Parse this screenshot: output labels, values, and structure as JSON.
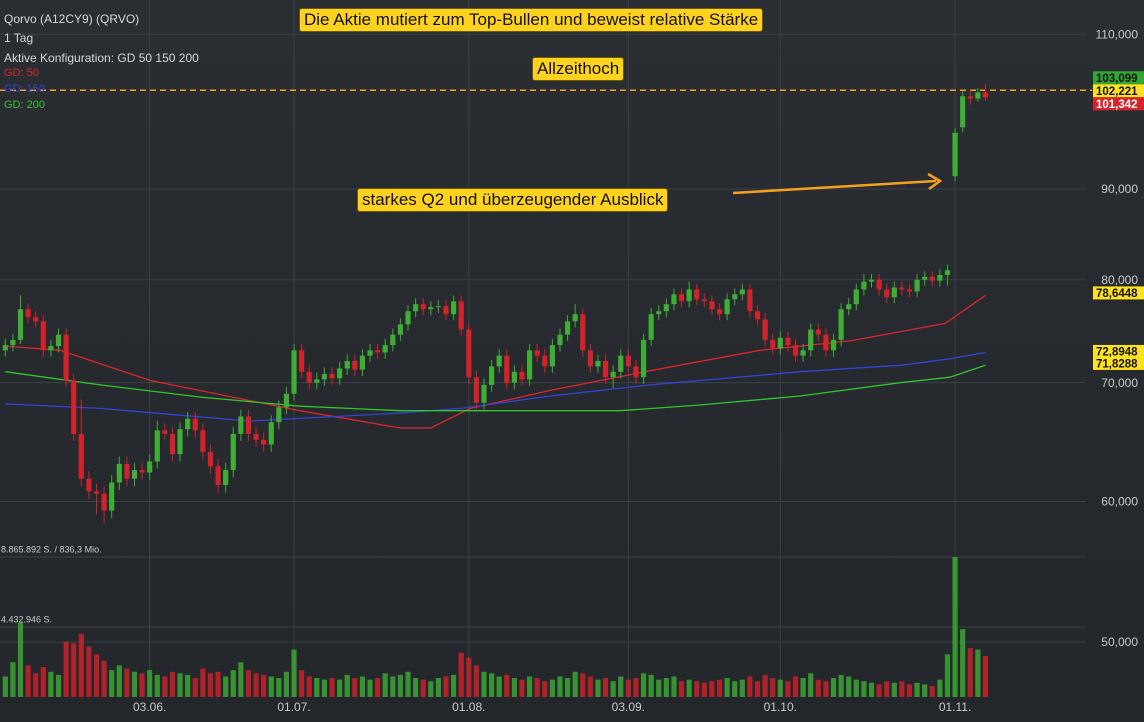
{
  "legend": {
    "title": "Qorvo (A12CY9) (QRVO)",
    "interval": "1 Tag",
    "config": "Aktive Konfiguration: GD 50 150 200"
  },
  "annotations": [
    {
      "text": "Die Aktie mutiert zum Top-Bullen und beweist relative Stärke"
    },
    {
      "text": "Allzeithoch"
    },
    {
      "text": "starkes Q2 und überzeugender Ausblick"
    }
  ],
  "chart_data": {
    "type": "candlestick",
    "log_scale": true,
    "grid": true,
    "xlim": [
      -0.7,
      142.1
    ],
    "xticks": [
      {
        "value": 19,
        "label": "03.06."
      },
      {
        "value": 38,
        "label": "01.07."
      },
      {
        "value": 61,
        "label": "01.08."
      },
      {
        "value": 82,
        "label": "03.09."
      },
      {
        "value": 102,
        "label": "01.10."
      },
      {
        "value": 125,
        "label": "01.11."
      }
    ],
    "ylim": [
      46.5,
      115
    ],
    "yticks": [
      {
        "value": 110,
        "label": "110,000"
      },
      {
        "value": 90,
        "label": "90,000"
      },
      {
        "value": 80,
        "label": "80,000"
      },
      {
        "value": 70,
        "label": "70,000"
      },
      {
        "value": 60,
        "label": "60,000"
      },
      {
        "value": 50,
        "label": "50,000"
      }
    ],
    "up_color": "#3fae35",
    "down_color": "#d2222a",
    "open": [
      73.0,
      73.5,
      74.0,
      77.0,
      76.2,
      75.8,
      73.0,
      73.4,
      74.5,
      70.2,
      65.5,
      61.8,
      60.8,
      60.6,
      59.3,
      61.5,
      63.0,
      61.8,
      62.5,
      62.3,
      63.2,
      65.8,
      65.5,
      63.8,
      65.9,
      66.8,
      65.8,
      64.0,
      62.8,
      61.3,
      62.5,
      65.5,
      67.0,
      65.5,
      65.0,
      64.6,
      66.5,
      67.8,
      69.0,
      73.0,
      71.0,
      70.0,
      70.3,
      70.8,
      70.4,
      71.3,
      72.0,
      71.2,
      72.5,
      73.0,
      72.8,
      73.5,
      74.5,
      75.5,
      76.8,
      77.5,
      77.0,
      77.2,
      77.3,
      76.5,
      77.8,
      75.0,
      70.5,
      68.2,
      69.8,
      71.5,
      72.5,
      70.0,
      71.0,
      70.3,
      73.0,
      72.5,
      71.5,
      73.5,
      74.5,
      75.8,
      76.5,
      73.0,
      71.5,
      72.0,
      70.5,
      71.0,
      72.5,
      71.5,
      70.5,
      74.0,
      76.5,
      76.8,
      77.5,
      78.5,
      77.8,
      79.0,
      78.0,
      77.8,
      77.0,
      76.5,
      78.0,
      78.5,
      79.0,
      76.8,
      76.0,
      74.0,
      73.2,
      74.2,
      73.5,
      72.5,
      73.0,
      75.0,
      74.5,
      73.0,
      74.0,
      77.0,
      77.5,
      79.0,
      79.8,
      80.0,
      79.0,
      78.2,
      79.2,
      79.0,
      78.8,
      80.0,
      80.3,
      79.9,
      80.5,
      91.5,
      97.5,
      101.5,
      101.2,
      102.0
    ],
    "high": [
      74.1,
      74.6,
      78.4,
      77.6,
      76.8,
      76.4,
      74.0,
      75.1,
      75.1,
      70.8,
      68.5,
      62.4,
      61.4,
      61.2,
      62.1,
      63.6,
      63.6,
      63.1,
      63.1,
      63.8,
      66.6,
      66.4,
      66.1,
      66.5,
      67.4,
      67.4,
      66.4,
      64.6,
      63.4,
      63.1,
      66.1,
      67.6,
      67.6,
      66.1,
      65.6,
      67.1,
      68.4,
      69.6,
      73.6,
      73.6,
      71.6,
      70.9,
      71.4,
      71.4,
      71.9,
      72.6,
      72.6,
      73.1,
      73.6,
      73.6,
      74.1,
      75.1,
      76.1,
      77.4,
      78.1,
      78.1,
      77.8,
      77.9,
      77.9,
      78.4,
      78.4,
      75.6,
      71.1,
      70.4,
      72.1,
      73.1,
      73.1,
      71.6,
      71.6,
      73.6,
      73.6,
      73.1,
      74.1,
      75.1,
      76.4,
      77.5,
      77.1,
      73.6,
      72.6,
      72.6,
      71.6,
      73.1,
      73.1,
      72.1,
      74.6,
      77.1,
      77.4,
      78.1,
      79.1,
      79.1,
      79.8,
      79.6,
      78.6,
      78.4,
      77.6,
      78.6,
      79.1,
      79.6,
      79.6,
      77.4,
      76.6,
      74.6,
      74.8,
      74.8,
      74.1,
      73.6,
      75.6,
      75.6,
      75.1,
      74.6,
      77.6,
      78.1,
      79.6,
      80.6,
      80.6,
      80.6,
      79.6,
      79.8,
      79.8,
      79.6,
      80.6,
      80.9,
      80.9,
      81.1,
      81.6,
      97.4,
      102.2,
      102.3,
      102.6,
      103.099
    ],
    "low": [
      72.4,
      72.9,
      73.6,
      75.6,
      75.2,
      72.4,
      72.4,
      72.8,
      69.6,
      64.9,
      61.2,
      60.2,
      59.0,
      58.3,
      58.7,
      60.9,
      61.2,
      61.2,
      61.7,
      61.7,
      62.6,
      64.9,
      63.2,
      63.2,
      65.3,
      65.2,
      63.4,
      62.2,
      60.7,
      60.7,
      61.9,
      64.9,
      64.9,
      64.4,
      64.0,
      64.0,
      65.9,
      67.2,
      68.4,
      70.4,
      69.4,
      69.4,
      69.7,
      69.8,
      69.8,
      70.7,
      70.6,
      70.6,
      71.9,
      72.2,
      72.2,
      72.9,
      73.9,
      74.9,
      76.2,
      76.4,
      76.4,
      76.6,
      75.9,
      75.9,
      74.4,
      69.9,
      67.6,
      67.6,
      69.2,
      70.9,
      69.4,
      69.4,
      69.7,
      69.7,
      71.9,
      70.9,
      70.9,
      72.9,
      73.9,
      75.2,
      72.4,
      70.9,
      70.9,
      69.9,
      69.5,
      70.4,
      70.9,
      69.9,
      69.9,
      73.4,
      75.9,
      76.2,
      76.9,
      77.2,
      77.2,
      77.4,
      77.2,
      76.4,
      75.9,
      75.9,
      77.4,
      77.9,
      76.2,
      75.4,
      73.4,
      72.6,
      72.6,
      72.9,
      71.9,
      71.9,
      72.4,
      73.9,
      72.4,
      72.4,
      73.4,
      76.4,
      76.9,
      78.4,
      79.2,
      78.4,
      77.6,
      77.6,
      78.4,
      78.2,
      78.2,
      79.4,
      79.3,
      79.3,
      79.4,
      90.9,
      96.9,
      100.4,
      100.8,
      100.9
    ],
    "close": [
      73.5,
      74.0,
      77.0,
      76.2,
      75.8,
      73.0,
      73.4,
      74.5,
      70.2,
      65.5,
      61.8,
      60.8,
      60.6,
      59.3,
      61.5,
      63.0,
      61.8,
      62.5,
      62.3,
      63.2,
      65.8,
      65.5,
      63.8,
      65.9,
      66.8,
      65.8,
      64.0,
      62.8,
      61.3,
      62.5,
      65.5,
      67.0,
      65.5,
      65.0,
      64.6,
      66.5,
      67.8,
      69.0,
      73.0,
      71.0,
      70.0,
      70.3,
      70.8,
      70.4,
      71.3,
      72.0,
      71.2,
      72.5,
      73.0,
      72.8,
      73.5,
      74.5,
      75.5,
      76.8,
      77.5,
      77.0,
      77.2,
      77.3,
      76.5,
      77.8,
      75.0,
      70.5,
      68.2,
      69.8,
      71.5,
      72.5,
      70.0,
      71.0,
      70.3,
      73.0,
      72.5,
      71.5,
      73.5,
      74.5,
      75.8,
      76.5,
      73.0,
      71.5,
      72.0,
      70.5,
      71.0,
      72.5,
      71.5,
      70.5,
      74.0,
      76.5,
      76.8,
      77.5,
      78.5,
      77.8,
      79.0,
      78.0,
      77.8,
      77.0,
      76.5,
      78.0,
      78.5,
      79.0,
      76.8,
      76.0,
      74.0,
      73.2,
      74.2,
      73.5,
      72.5,
      73.0,
      75.0,
      74.5,
      73.0,
      74.0,
      77.0,
      77.5,
      79.0,
      79.8,
      80.0,
      79.0,
      78.2,
      79.2,
      79.0,
      78.8,
      80.0,
      80.3,
      79.9,
      80.5,
      81.0,
      96.8,
      101.5,
      101.2,
      102.0,
      101.342
    ],
    "reference_line": {
      "value": 102.3,
      "color": "#f5a020"
    },
    "price_labels": [
      {
        "value": 103.099,
        "label": "103,099",
        "color": "#2fa82f"
      },
      {
        "value": 102.221,
        "label": "102,221",
        "color": "#ffe21f"
      },
      {
        "value": 101.342,
        "label": "101,342",
        "color": "#d8232b"
      }
    ],
    "series": [
      {
        "name": "GD: 50",
        "color": "#d8262c",
        "x": [
          0,
          7.2,
          19.1,
          38.8,
          52,
          56,
          61.2,
          71.7,
          84.9,
          99.3,
          111.2,
          123.7,
          129
        ],
        "values": [
          73.4,
          73.0,
          70.2,
          67.5,
          66.0,
          66.0,
          67.7,
          69.3,
          71.1,
          73.0,
          73.9,
          75.6,
          78.4
        ],
        "last_label": {
          "value": 78.6448,
          "label": "78,6448",
          "color": "#ffe21f"
        }
      },
      {
        "name": "GD: 150",
        "color": "#2f46d6",
        "x": [
          0,
          12.5,
          32.2,
          52,
          60,
          71.7,
          84.9,
          104.6,
          117.8,
          124.3,
          129
        ],
        "values": [
          68.1,
          67.7,
          66.6,
          67.3,
          67.7,
          68.8,
          69.8,
          71.0,
          71.6,
          72.2,
          72.8
        ],
        "last_label": {
          "value": 72.8948,
          "label": "72,8948",
          "color": "#ffe21f"
        }
      },
      {
        "name": "GD: 200",
        "color": "#33c42e",
        "x": [
          0,
          12.5,
          25.7,
          38.8,
          52,
          65.1,
          80.9,
          91.4,
          104.6,
          117.8,
          124.3,
          129
        ],
        "values": [
          71.0,
          69.8,
          68.7,
          67.9,
          67.5,
          67.5,
          67.5,
          68.0,
          68.8,
          70.0,
          70.5,
          71.6
        ],
        "last_label": {
          "value": 71.8288,
          "label": "71,8288",
          "color": "#ffe21f"
        }
      }
    ],
    "volume": {
      "ylim": [
        0,
        8865892
      ],
      "yticks": [
        {
          "value": 8865892,
          "label": "8.865.892 S. / 836,3 Mio."
        },
        {
          "value": 4432946,
          "label": "4.432.946 S."
        }
      ],
      "values": [
        1300000,
        2200000,
        4700000,
        2000000,
        1500000,
        1900000,
        1600000,
        1400000,
        3500000,
        3400000,
        4000000,
        3200000,
        2700000,
        2300000,
        1700000,
        2000000,
        1800000,
        1600000,
        1500000,
        1700000,
        1400000,
        1300000,
        1600000,
        1500000,
        1400000,
        1200000,
        1800000,
        1500000,
        1600000,
        1300000,
        1700000,
        2200000,
        1700000,
        1500000,
        1400000,
        1300000,
        1200000,
        1600000,
        3000000,
        1700000,
        1300000,
        1200000,
        1100000,
        1200000,
        1100000,
        1400000,
        1200000,
        1300000,
        1100000,
        1200000,
        1500000,
        1300000,
        1400000,
        1600000,
        1200000,
        1100000,
        1000000,
        1200000,
        1300000,
        1400000,
        2800000,
        2500000,
        2000000,
        1600000,
        1500000,
        1300000,
        1400000,
        1200000,
        1100000,
        1300000,
        1200000,
        1000000,
        1100000,
        1300000,
        1200000,
        1600000,
        1500000,
        1300000,
        1100000,
        1200000,
        1000000,
        1300000,
        1100000,
        1200000,
        1500000,
        1400000,
        1100000,
        1200000,
        1300000,
        1000000,
        1100000,
        1000000,
        900000,
        1000000,
        1100000,
        1200000,
        1000000,
        1100000,
        1300000,
        1000000,
        1400000,
        1200000,
        1100000,
        1000000,
        1300000,
        1200000,
        1500000,
        1100000,
        1000000,
        1200000,
        1400000,
        1300000,
        1100000,
        1000000,
        900000,
        800000,
        1000000,
        900000,
        1000000,
        800000,
        900000,
        800000,
        700000,
        1100000,
        2700000,
        8865892,
        4300000,
        3100000,
        3000000,
        2600000
      ]
    }
  }
}
